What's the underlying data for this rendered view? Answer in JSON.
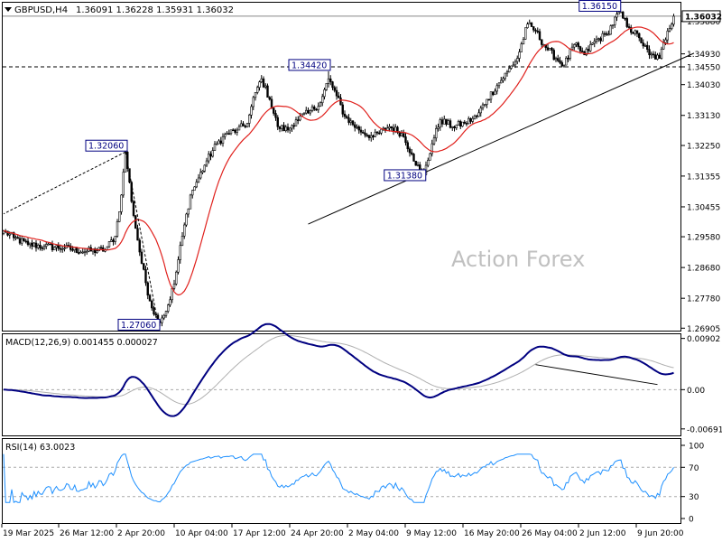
{
  "header": {
    "symbol": "GBPUSD,H4",
    "ohlc": "1.36091 1.36228 1.35931 1.36032"
  },
  "watermark": "Action Forex",
  "colors": {
    "candle": "#000000",
    "ma": "#e0201c",
    "macd": "#000080",
    "signal": "#b0b0b0",
    "rsi": "#1e90ff",
    "price_box_fill": "#ffffff",
    "grid_dash": "#999999",
    "watermark": "#c0c0c0"
  },
  "chart_data": [
    {
      "type": "candlestick",
      "title": "GBPUSD,H4",
      "ylim": [
        1.2686,
        1.364
      ],
      "yticks": [
        "1.36032",
        "1.35880",
        "1.34930",
        "1.34550",
        "1.34030",
        "1.33130",
        "1.32250",
        "1.31355",
        "1.30455",
        "1.29580",
        "1.28680",
        "1.27780",
        "1.26905"
      ],
      "xticks": [
        "19 Mar 2025",
        "26 Mar 12:00",
        "2 Apr 20:00",
        "10 Apr 04:00",
        "17 Apr 12:00",
        "24 Apr 20:00",
        "2 May 04:00",
        "9 May 12:00",
        "16 May 20:00",
        "26 May 04:00",
        "2 Jun 12:00",
        "9 Jun 20:00"
      ],
      "current_price": 1.36032,
      "horizontal_level": 1.3455,
      "price_labels": [
        {
          "text": "1.32060",
          "value": 1.3206,
          "bar": 60
        },
        {
          "text": "1.27060",
          "value": 1.2706,
          "bar": 76
        },
        {
          "text": "1.34420",
          "value": 1.3442,
          "bar": 160
        },
        {
          "text": "1.31380",
          "value": 1.3138,
          "bar": 207
        },
        {
          "text": "1.36150",
          "value": 1.3615,
          "bar": 303
        }
      ],
      "series": [
        {
          "name": "close",
          "anchors": [
            [
              0,
              1.2975
            ],
            [
              5,
              1.2955
            ],
            [
              12,
              1.2935
            ],
            [
              20,
              1.293
            ],
            [
              30,
              1.2925
            ],
            [
              40,
              1.2915
            ],
            [
              50,
              1.292
            ],
            [
              55,
              1.296
            ],
            [
              58,
              1.308
            ],
            [
              60,
              1.3206
            ],
            [
              64,
              1.302
            ],
            [
              68,
              1.288
            ],
            [
              72,
              1.277
            ],
            [
              76,
              1.271
            ],
            [
              80,
              1.274
            ],
            [
              84,
              1.282
            ],
            [
              88,
              1.296
            ],
            [
              92,
              1.308
            ],
            [
              96,
              1.313
            ],
            [
              100,
              1.318
            ],
            [
              105,
              1.323
            ],
            [
              110,
              1.326
            ],
            [
              115,
              1.327
            ],
            [
              120,
              1.329
            ],
            [
              124,
              1.338
            ],
            [
              127,
              1.342
            ],
            [
              131,
              1.336
            ],
            [
              135,
              1.328
            ],
            [
              140,
              1.327
            ],
            [
              144,
              1.33
            ],
            [
              150,
              1.332
            ],
            [
              156,
              1.335
            ],
            [
              160,
              1.342
            ],
            [
              164,
              1.337
            ],
            [
              168,
              1.331
            ],
            [
              175,
              1.327
            ],
            [
              182,
              1.325
            ],
            [
              190,
              1.328
            ],
            [
              196,
              1.326
            ],
            [
              201,
              1.32
            ],
            [
              205,
              1.315
            ],
            [
              207,
              1.314
            ],
            [
              211,
              1.323
            ],
            [
              215,
              1.33
            ],
            [
              221,
              1.328
            ],
            [
              227,
              1.329
            ],
            [
              233,
              1.331
            ],
            [
              238,
              1.336
            ],
            [
              243,
              1.34
            ],
            [
              248,
              1.344
            ],
            [
              253,
              1.348
            ],
            [
              258,
              1.358
            ],
            [
              262,
              1.356
            ],
            [
              266,
              1.352
            ],
            [
              272,
              1.348
            ],
            [
              276,
              1.346
            ],
            [
              281,
              1.352
            ],
            [
              286,
              1.349
            ],
            [
              291,
              1.353
            ],
            [
              297,
              1.355
            ],
            [
              303,
              1.3615
            ],
            [
              308,
              1.357
            ],
            [
              313,
              1.354
            ],
            [
              318,
              1.349
            ],
            [
              323,
              1.348
            ],
            [
              327,
              1.356
            ],
            [
              330,
              1.3603
            ]
          ]
        },
        {
          "name": "MA",
          "type": "moving-average",
          "period": 20
        },
        {
          "name": "MACD(12,26,9)",
          "values_text": "0.001455 0.000027"
        },
        {
          "name": "RSI(14)",
          "values_text": "63.0023"
        }
      ],
      "trendlines": [
        {
          "from": [
            60,
            1.3206
          ],
          "to": [
            0,
            1.3025
          ],
          "style": "dashed"
        },
        {
          "from": [
            60,
            1.3206
          ],
          "to": [
            76,
            1.2706
          ],
          "style": "dashed"
        },
        {
          "from": [
            150,
            1.2995
          ],
          "to": [
            340,
            1.3495
          ],
          "style": "solid"
        }
      ]
    },
    {
      "type": "line",
      "title": "MACD(12,26,9) 0.001455 0.000027",
      "ylim": [
        -0.0079,
        0.0096
      ],
      "yticks": [
        "0.00902",
        "0.00",
        "-0.006915"
      ],
      "divergence_line": {
        "from": [
          262,
          0.0044
        ],
        "to": [
          322,
          0.0009
        ]
      }
    },
    {
      "type": "line",
      "title": "RSI(14) 63.0023",
      "ylim": [
        0,
        100
      ],
      "yticks": [
        "100",
        "70",
        "30",
        "0"
      ],
      "levels": [
        70,
        30
      ]
    }
  ]
}
